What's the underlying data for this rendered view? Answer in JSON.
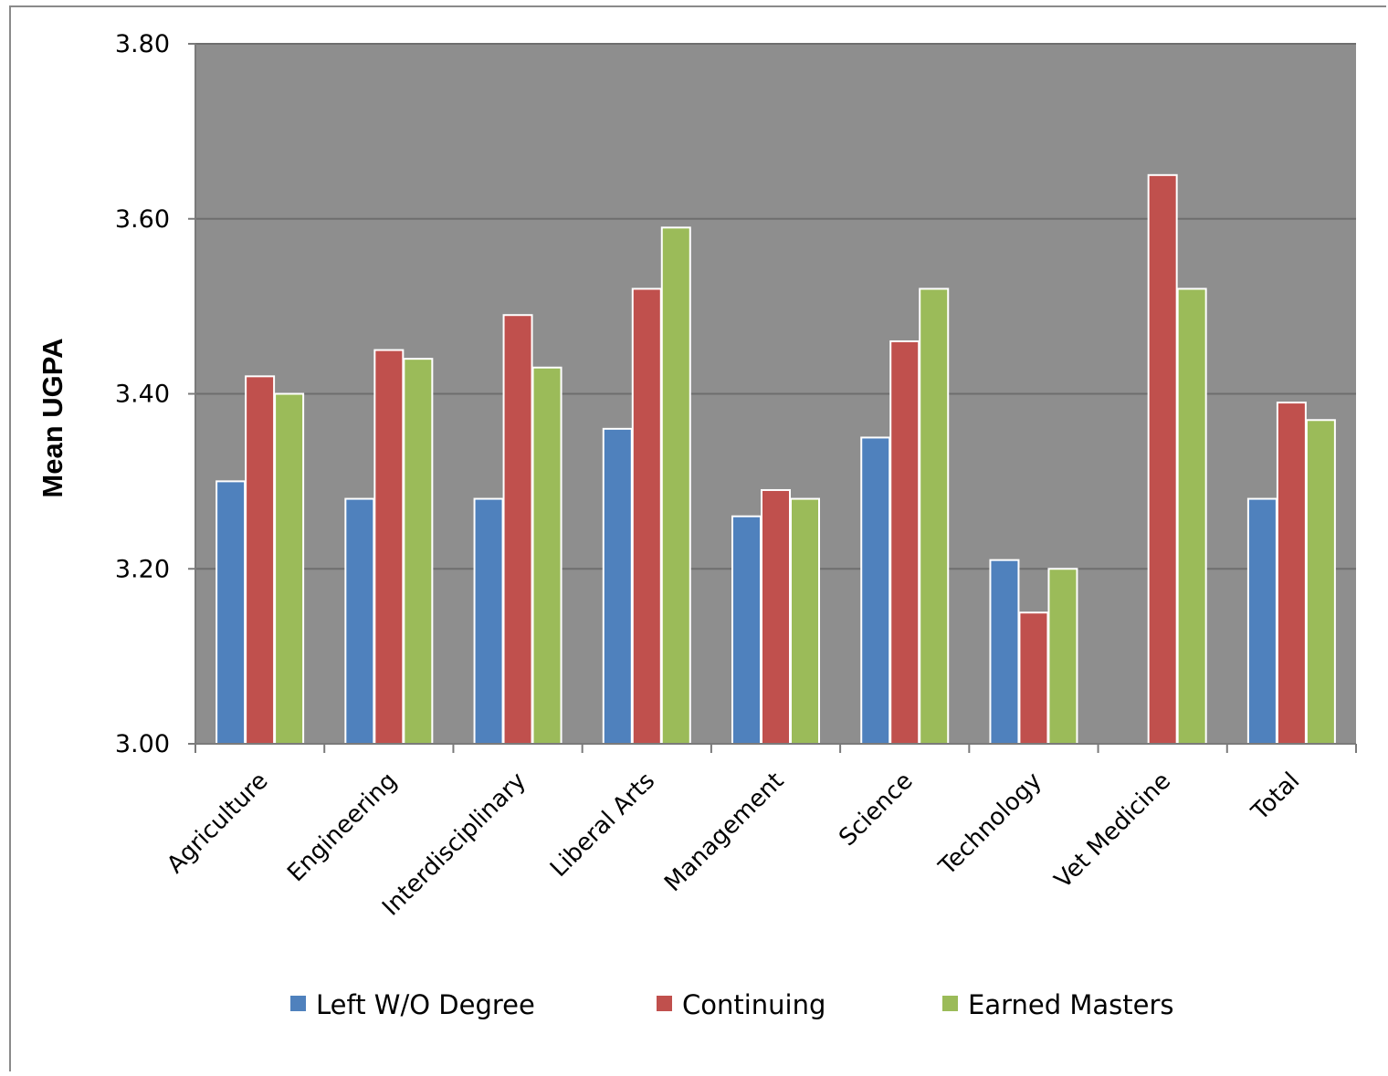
{
  "chart_data": {
    "type": "bar",
    "title": "",
    "xlabel": "",
    "ylabel": "Mean UGPA",
    "ylim": [
      3.0,
      3.8
    ],
    "yticks": [
      "3.00",
      "3.20",
      "3.40",
      "3.60",
      "3.80"
    ],
    "grid": true,
    "legend_position": "bottom",
    "plot_background": "#8e8e8e",
    "categories": [
      "Agriculture",
      "Engineering",
      "Interdisciplinary",
      "Liberal Arts",
      "Management",
      "Science",
      "Technology",
      "Vet Medicine",
      "Total"
    ],
    "series": [
      {
        "name": "Left W/O Degree",
        "color": "#4f81bd",
        "values": [
          3.3,
          3.28,
          3.28,
          3.36,
          3.26,
          3.35,
          3.21,
          null,
          3.28
        ]
      },
      {
        "name": "Continuing",
        "color": "#c0504d",
        "values": [
          3.42,
          3.45,
          3.49,
          3.52,
          3.29,
          3.46,
          3.15,
          3.65,
          3.39
        ]
      },
      {
        "name": "Earned Masters",
        "color": "#9bbb59",
        "values": [
          3.4,
          3.44,
          3.43,
          3.59,
          3.28,
          3.52,
          3.2,
          3.52,
          3.37
        ]
      }
    ]
  }
}
